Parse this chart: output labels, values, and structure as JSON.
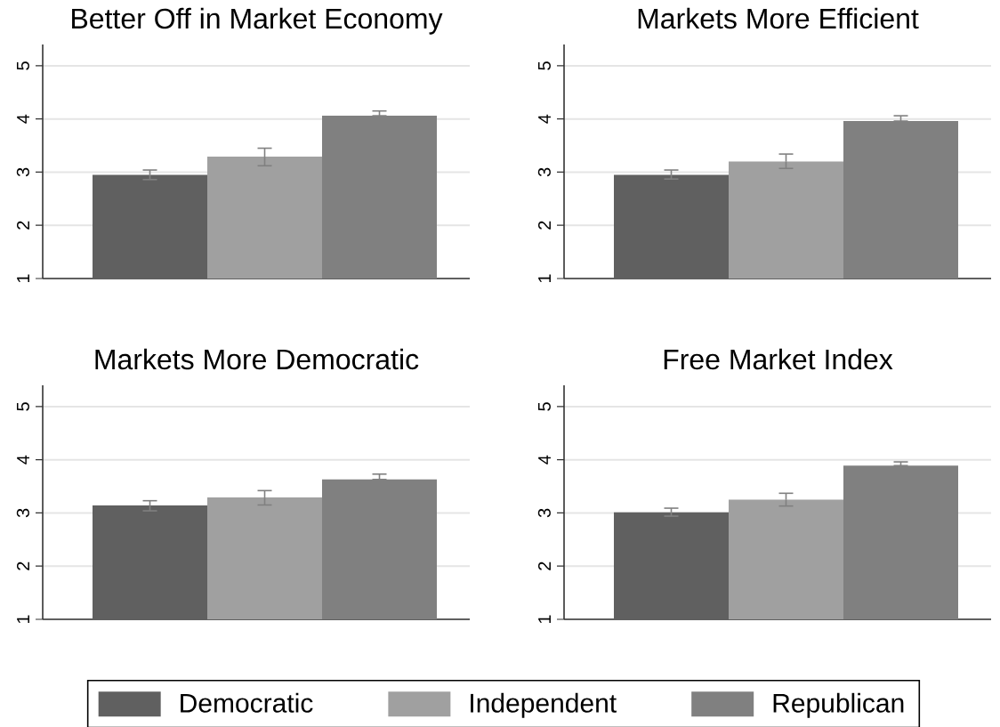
{
  "chart_data": [
    {
      "type": "bar",
      "title": "Better Off in Market Economy",
      "categories": [
        null
      ],
      "ylim": [
        1,
        5.4
      ],
      "yticks": [
        1,
        2,
        3,
        4,
        5
      ],
      "grid": "y",
      "series": [
        {
          "color": "#606060",
          "values": [
            2.95
          ],
          "errors": [
            [
              2.86,
              3.04
            ]
          ]
        },
        {
          "color": "#a0a0a0",
          "values": [
            3.29
          ],
          "errors": [
            [
              3.12,
              3.45
            ]
          ]
        },
        {
          "color": "#808080",
          "values": [
            4.06
          ],
          "errors": [
            [
              4.06,
              4.15
            ]
          ]
        }
      ]
    },
    {
      "type": "bar",
      "title": "Markets More Efficient",
      "categories": [
        null
      ],
      "ylim": [
        1,
        5.4
      ],
      "yticks": [
        1,
        2,
        3,
        4,
        5
      ],
      "grid": "y",
      "series": [
        {
          "color": "#606060",
          "values": [
            2.95
          ],
          "errors": [
            [
              2.87,
              3.04
            ]
          ]
        },
        {
          "color": "#a0a0a0",
          "values": [
            3.2
          ],
          "errors": [
            [
              3.07,
              3.34
            ]
          ]
        },
        {
          "color": "#808080",
          "values": [
            3.96
          ],
          "errors": [
            [
              3.96,
              4.06
            ]
          ]
        }
      ]
    },
    {
      "type": "bar",
      "title": "Markets More Democratic",
      "categories": [
        null
      ],
      "ylim": [
        1,
        5.4
      ],
      "yticks": [
        1,
        2,
        3,
        4,
        5
      ],
      "grid": "y",
      "series": [
        {
          "color": "#606060",
          "values": [
            3.14
          ],
          "errors": [
            [
              3.04,
              3.23
            ]
          ]
        },
        {
          "color": "#a0a0a0",
          "values": [
            3.29
          ],
          "errors": [
            [
              3.15,
              3.42
            ]
          ]
        },
        {
          "color": "#808080",
          "values": [
            3.63
          ],
          "errors": [
            [
              3.63,
              3.73
            ]
          ]
        }
      ]
    },
    {
      "type": "bar",
      "title": "Free Market Index",
      "categories": [
        null
      ],
      "ylim": [
        1,
        5.4
      ],
      "yticks": [
        1,
        2,
        3,
        4,
        5
      ],
      "grid": "y",
      "legend": "bottom",
      "series": [
        {
          "name": "Democratic",
          "color": "#606060",
          "values": [
            3.01
          ],
          "errors": [
            [
              2.94,
              3.09
            ]
          ]
        },
        {
          "name": "Independent",
          "color": "#a0a0a0",
          "values": [
            3.25
          ],
          "errors": [
            [
              3.13,
              3.37
            ]
          ]
        },
        {
          "name": "Republican",
          "color": "#808080",
          "values": [
            3.89
          ],
          "errors": [
            [
              3.89,
              3.96
            ]
          ]
        }
      ]
    }
  ]
}
